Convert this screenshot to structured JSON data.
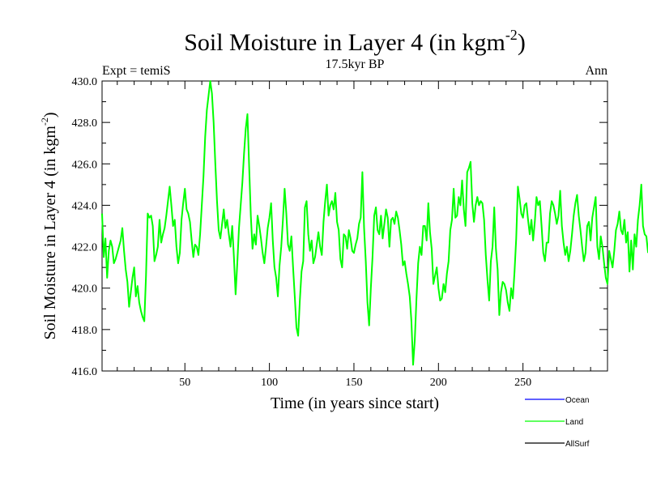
{
  "chart_data": {
    "type": "line",
    "title": "Soil Moisture in Layer 4 (in kgm",
    "title_sup": "-2",
    "title_close": ")",
    "subtitle": "17.5kyr BP",
    "left_label": "Expt = temiS",
    "right_label": "Ann",
    "xlabel": "Time (in years since start)",
    "ylabel": "Soil Moisture in Layer 4 (in kgm",
    "ylabel_sup": "-2",
    "ylabel_close": ")",
    "xlim": [
      1,
      300
    ],
    "ylim": [
      416,
      430
    ],
    "x_ticks": [
      50,
      100,
      150,
      200,
      250
    ],
    "x_tick_labels": [
      "50",
      "100",
      "150",
      "200",
      "250"
    ],
    "y_ticks": [
      416,
      418,
      420,
      422,
      424,
      426,
      428,
      430
    ],
    "y_tick_labels": [
      "416.0",
      "418.0",
      "420.0",
      "422.0",
      "424.0",
      "426.0",
      "428.0",
      "430.0"
    ],
    "legend": [
      {
        "name": "Ocean",
        "color": "#0000ff"
      },
      {
        "name": "Land",
        "color": "#00ff00"
      },
      {
        "name": "AllSurf",
        "color": "#000000"
      }
    ],
    "series": [
      {
        "name": "Land",
        "color": "#00ff00",
        "x_start": 1,
        "x_step": 1,
        "values": [
          423.6,
          421.5,
          422.4,
          420.5,
          421.8,
          422.3,
          422.0,
          421.2,
          421.4,
          421.7,
          422.0,
          422.3,
          422.9,
          421.8,
          420.9,
          420.3,
          419.1,
          419.8,
          420.5,
          421.0,
          419.6,
          420.1,
          419.3,
          418.9,
          418.6,
          418.4,
          420.6,
          423.6,
          423.4,
          423.5,
          423.0,
          421.3,
          421.6,
          422.0,
          423.3,
          422.2,
          422.6,
          422.9,
          423.5,
          424.2,
          424.9,
          424.0,
          423.0,
          423.3,
          422.0,
          421.2,
          421.7,
          423.3,
          424.1,
          424.8,
          423.8,
          423.6,
          423.2,
          422.3,
          421.5,
          422.1,
          422.0,
          421.6,
          422.6,
          424.0,
          425.4,
          427.3,
          428.6,
          429.3,
          430.0,
          429.4,
          428.0,
          426.0,
          424.2,
          422.8,
          422.4,
          423.1,
          423.8,
          422.9,
          423.3,
          422.6,
          422.0,
          423.0,
          421.5,
          419.7,
          421.2,
          422.9,
          424.0,
          425.1,
          426.5,
          427.7,
          428.4,
          425.9,
          423.5,
          421.9,
          422.6,
          422.1,
          423.5,
          423.0,
          422.4,
          421.7,
          421.2,
          422.0,
          422.9,
          423.4,
          424.1,
          422.3,
          421.0,
          420.5,
          419.6,
          421.1,
          422.0,
          423.3,
          424.8,
          423.6,
          422.1,
          421.8,
          422.5,
          421.0,
          419.6,
          418.1,
          417.7,
          419.4,
          420.8,
          421.3,
          423.9,
          424.2,
          422.6,
          421.8,
          422.3,
          421.2,
          421.5,
          422.1,
          422.7,
          422.0,
          421.6,
          423.2,
          424.2,
          425.0,
          423.5,
          424.0,
          424.2,
          423.8,
          424.6,
          423.2,
          422.8,
          421.4,
          421.0,
          422.6,
          422.5,
          421.9,
          422.8,
          422.4,
          421.8,
          421.7,
          422.1,
          422.4,
          423.1,
          423.4,
          425.6,
          422.9,
          421.3,
          419.3,
          418.2,
          420.0,
          421.5,
          423.5,
          423.9,
          422.8,
          422.6,
          423.5,
          422.4,
          423.1,
          423.8,
          423.4,
          422.0,
          423.3,
          423.4,
          423.1,
          423.7,
          423.4,
          422.8,
          422.1,
          421.1,
          421.3,
          420.7,
          420.2,
          419.6,
          418.4,
          416.3,
          417.5,
          419.5,
          421.2,
          422.0,
          421.6,
          423.0,
          423.0,
          422.3,
          424.1,
          422.7,
          421.9,
          420.2,
          420.6,
          421.0,
          420.0,
          419.4,
          419.5,
          420.2,
          419.8,
          420.7,
          421.3,
          422.8,
          423.3,
          424.8,
          423.4,
          423.5,
          424.4,
          424.0,
          425.2,
          423.8,
          423.0,
          425.6,
          425.8,
          426.1,
          424.1,
          423.2,
          424.0,
          424.4,
          424.0,
          424.2,
          424.1,
          423.3,
          421.6,
          420.4,
          419.4,
          421.3,
          422.0,
          423.9,
          421.9,
          420.9,
          418.7,
          419.8,
          420.3,
          420.2,
          419.9,
          419.3,
          418.9,
          420.0,
          419.5,
          420.8,
          422.4,
          424.9,
          424.3,
          423.6,
          423.4,
          424.0,
          424.1,
          423.3,
          422.6,
          423.3,
          422.3,
          423.2,
          424.4,
          424.0,
          424.2,
          423.0,
          421.7,
          421.3,
          422.2,
          422.2,
          423.6,
          424.2,
          424.0,
          423.6,
          423.1,
          423.5,
          424.7,
          423.0,
          422.2,
          421.6,
          422.0,
          421.3,
          421.8,
          422.6,
          423.5,
          424.1,
          424.5,
          423.5,
          422.8,
          422.0,
          421.3,
          421.7,
          423.0,
          423.2,
          422.3,
          423.4,
          423.9,
          424.4,
          422.0,
          421.4,
          422.5,
          422.0,
          421.2,
          420.5,
          420.2,
          421.8,
          421.4,
          421.0,
          421.8,
          422.8,
          423.1,
          423.7,
          422.8,
          422.6,
          423.3,
          422.2,
          422.7,
          420.8,
          422.3,
          420.9,
          422.6,
          422.0,
          423.3,
          424.0,
          425.0,
          423.0,
          422.6,
          422.5,
          421.7
        ]
      }
    ]
  }
}
